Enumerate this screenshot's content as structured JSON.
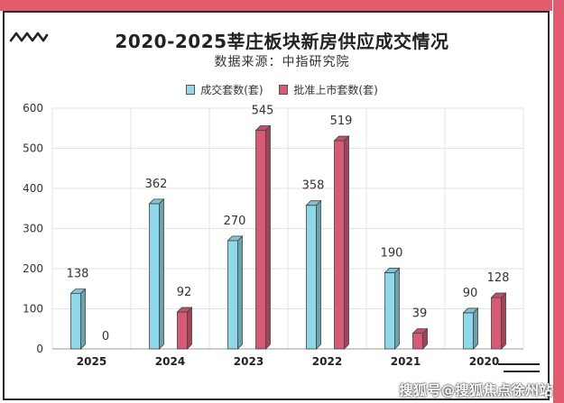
{
  "title": "2020-2025莘庄板块新房供应成交情况",
  "subtitle": "数据来源：中指研究院",
  "watermark": "搜狐号@搜狐焦点徐州站",
  "colors": {
    "frame": "#e25b6f",
    "series1": "#8fd8ea",
    "series2": "#d65a75"
  },
  "chart_data": {
    "type": "bar",
    "categories": [
      "2025",
      "2024",
      "2023",
      "2022",
      "2021",
      "2020"
    ],
    "series": [
      {
        "name": "成交套数(套)",
        "values": [
          138,
          362,
          270,
          358,
          190,
          90
        ]
      },
      {
        "name": "批准上市套数(套)",
        "values": [
          0,
          92,
          545,
          519,
          39,
          128
        ]
      }
    ],
    "ylim": [
      0,
      600
    ],
    "yticks": [
      0,
      100,
      200,
      300,
      400,
      500,
      600
    ],
    "grid": true,
    "legend": "top-center"
  }
}
